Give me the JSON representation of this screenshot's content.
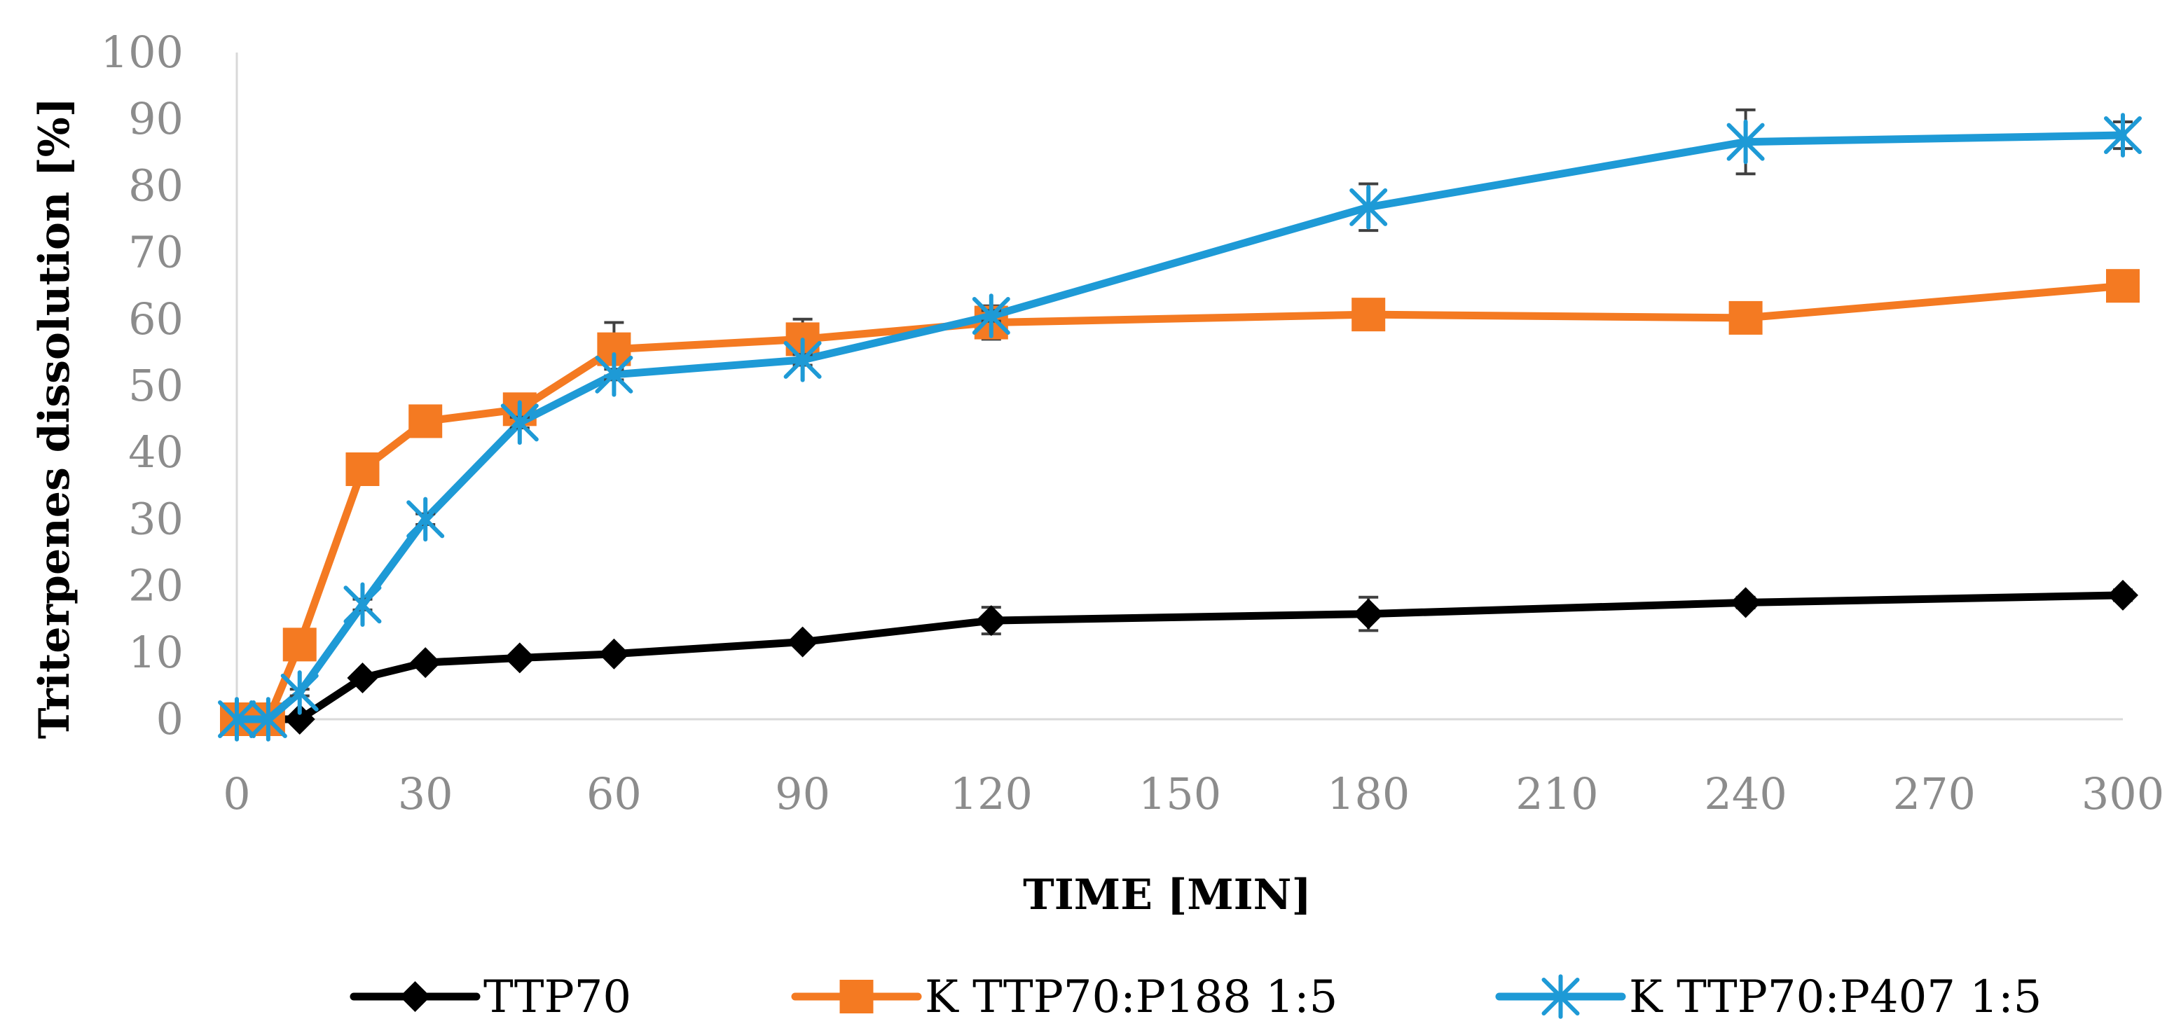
{
  "chart_data": {
    "type": "line",
    "title": "",
    "xlabel": "TIME [MIN]",
    "ylabel": "Triterpenes dissolution  [%]",
    "xlim": [
      0,
      300
    ],
    "ylim": [
      0,
      100
    ],
    "x_ticks": [
      "0",
      "30",
      "60",
      "90",
      "120",
      "150",
      "180",
      "210",
      "240",
      "270",
      "300"
    ],
    "y_ticks": [
      "0",
      "10",
      "20",
      "30",
      "40",
      "50",
      "60",
      "70",
      "80",
      "90",
      "100"
    ],
    "grid": false,
    "legend_position": "bottom",
    "series": [
      {
        "name": "TTP70",
        "color": "#000000",
        "marker": "diamond",
        "x": [
          0,
          5,
          10,
          20,
          30,
          45,
          60,
          90,
          120,
          180,
          240,
          300
        ],
        "y": [
          0,
          0,
          0,
          6.2,
          8.5,
          9.2,
          9.8,
          11.6,
          14.8,
          15.8,
          17.5,
          18.6
        ],
        "error": [
          0,
          0,
          0,
          0.5,
          0.5,
          0.5,
          0.5,
          0.6,
          2.0,
          2.5,
          0.8,
          0.8
        ]
      },
      {
        "name": "K TTP70:P188 1:5",
        "color": "#F47A22",
        "marker": "square",
        "x": [
          0,
          5,
          10,
          20,
          30,
          45,
          60,
          90,
          120,
          180,
          240,
          300
        ],
        "y": [
          0,
          0,
          11.2,
          37.5,
          44.7,
          46.5,
          55.5,
          57.0,
          59.5,
          60.7,
          60.2,
          65.0
        ],
        "error": [
          0,
          0,
          0.5,
          0.5,
          0.5,
          0.5,
          4.0,
          3.0,
          2.5,
          0.5,
          0.5,
          0.5
        ]
      },
      {
        "name": "K TTP70:P407 1:5",
        "color": "#1E9AD6",
        "marker": "asterisk",
        "x": [
          0,
          5,
          10,
          20,
          30,
          45,
          60,
          90,
          120,
          180,
          240,
          300
        ],
        "y": [
          0,
          0,
          4.0,
          17.2,
          30.0,
          44.5,
          51.7,
          53.9,
          60.5,
          76.8,
          86.6,
          87.6
        ],
        "error": [
          0,
          0,
          0.5,
          0.8,
          0.8,
          0.8,
          0.8,
          0.8,
          0.8,
          3.5,
          4.8,
          2.0
        ]
      }
    ]
  }
}
